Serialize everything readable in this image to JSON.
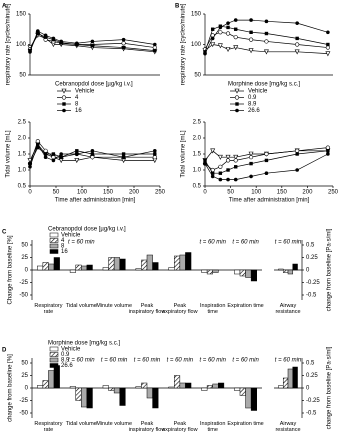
{
  "chart_data": [
    {
      "type": "line",
      "panel": "A",
      "ylabel": "respiratory rate [cycles/minute]",
      "legend_title": "Cebranopdol dose [µg/kg i.v.]",
      "x": [
        0,
        15,
        30,
        45,
        60,
        90,
        120,
        180,
        240
      ],
      "xlim": [
        0,
        250
      ],
      "ylim": [
        50,
        150
      ],
      "yticks": [
        50,
        100,
        150
      ],
      "series": [
        {
          "name": "Vehicle",
          "color": "#000000",
          "marker": "triangle-down",
          "values": [
            95,
            115,
            110,
            100,
            100,
            98,
            95,
            93,
            88
          ]
        },
        {
          "name": "4",
          "color": "#000000",
          "marker": "circle-open",
          "values": [
            92,
            120,
            108,
            105,
            102,
            100,
            100,
            102,
            95
          ]
        },
        {
          "name": "8",
          "color": "#000000",
          "marker": "square",
          "values": [
            90,
            118,
            112,
            108,
            103,
            100,
            98,
            95,
            90
          ]
        },
        {
          "name": "16",
          "color": "#000000",
          "marker": "circle",
          "values": [
            88,
            122,
            115,
            110,
            105,
            102,
            105,
            108,
            100
          ]
        }
      ]
    },
    {
      "type": "line",
      "ylabel": "Tidal volume [mL]",
      "xlabel": "Time after administration [min]",
      "x": [
        0,
        15,
        30,
        45,
        60,
        90,
        120,
        180,
        240
      ],
      "xlim": [
        0,
        250
      ],
      "xticks": [
        0,
        50,
        100,
        150,
        200,
        250
      ],
      "ylim": [
        0.5,
        2.5
      ],
      "yticks": [
        0.5,
        {
          "value": 1,
          "label": "1.0"
        },
        1.5,
        {
          "value": 2,
          "label": "2.0"
        },
        2.5
      ],
      "series": [
        {
          "color": "#000000",
          "marker": "triangle-down",
          "values": [
            1.3,
            1.8,
            1.5,
            1.4,
            1.3,
            1.3,
            1.4,
            1.3,
            1.3
          ]
        },
        {
          "color": "#000000",
          "marker": "circle-open",
          "values": [
            1.2,
            1.9,
            1.6,
            1.4,
            1.4,
            1.5,
            1.4,
            1.4,
            1.4
          ]
        },
        {
          "color": "#000000",
          "marker": "square",
          "values": [
            1.2,
            1.7,
            1.5,
            1.5,
            1.4,
            1.6,
            1.5,
            1.5,
            1.5
          ]
        },
        {
          "color": "#000000",
          "marker": "circle",
          "values": [
            1.1,
            1.8,
            1.4,
            1.3,
            1.5,
            1.5,
            1.6,
            1.4,
            1.6
          ]
        }
      ]
    },
    {
      "type": "line",
      "panel": "B",
      "ylabel": "respiratory rate [cycles/minute]",
      "legend_title": "Morphine dose [mg/kg s.c.]",
      "x": [
        0,
        15,
        30,
        45,
        60,
        90,
        120,
        180,
        240
      ],
      "xlim": [
        0,
        250
      ],
      "ylim": [
        50,
        150
      ],
      "yticks": [
        50,
        100,
        150
      ],
      "series": [
        {
          "name": "Vehicle",
          "color": "#000000",
          "marker": "triangle-down",
          "values": [
            90,
            100,
            98,
            92,
            95,
            90,
            88,
            88,
            85
          ]
        },
        {
          "name": "0.9",
          "color": "#000000",
          "marker": "circle-open",
          "values": [
            92,
            115,
            120,
            118,
            112,
            108,
            105,
            100,
            95
          ]
        },
        {
          "name": "8.9",
          "color": "#000000",
          "marker": "square",
          "values": [
            88,
            125,
            130,
            128,
            125,
            120,
            118,
            110,
            100
          ]
        },
        {
          "name": "26.6",
          "color": "#000000",
          "marker": "circle",
          "values": [
            85,
            110,
            128,
            135,
            140,
            140,
            138,
            135,
            120
          ]
        }
      ]
    },
    {
      "type": "line",
      "ylabel": "Tidal volume [mL]",
      "xlabel": "Time after administration [min]",
      "x": [
        0,
        15,
        30,
        45,
        60,
        90,
        120,
        180,
        240
      ],
      "xlim": [
        0,
        250
      ],
      "xticks": [
        0,
        50,
        100,
        150,
        200,
        250
      ],
      "ylim": [
        0.5,
        2.5
      ],
      "yticks": [
        0.5,
        {
          "value": 1,
          "label": "1.0"
        },
        1.5,
        {
          "value": 2,
          "label": "2.0"
        },
        2.5
      ],
      "series": [
        {
          "color": "#000000",
          "marker": "triangle-down",
          "values": [
            1.3,
            1.6,
            1.4,
            1.4,
            1.4,
            1.5,
            1.5,
            1.6,
            1.6
          ]
        },
        {
          "color": "#000000",
          "marker": "circle-open",
          "values": [
            1.2,
            1.0,
            1.1,
            1.3,
            1.3,
            1.4,
            1.5,
            1.6,
            1.7
          ]
        },
        {
          "color": "#000000",
          "marker": "square",
          "values": [
            1.3,
            0.9,
            0.9,
            1.0,
            1.1,
            1.2,
            1.3,
            1.5,
            1.6
          ]
        },
        {
          "color": "#000000",
          "marker": "circle",
          "values": [
            1.2,
            0.8,
            0.7,
            0.7,
            0.7,
            0.8,
            0.9,
            1.0,
            1.5
          ]
        }
      ]
    },
    {
      "type": "bar",
      "panel": "C",
      "ylabel": "Change from baseline [%]",
      "legend_title": "Cebranopdol dose [µg/kg i.v.]",
      "categories": [
        "Respiratory rate",
        "Tidal volume",
        "Minute volume",
        "Peak inspiratory flow",
        "Peak expiratory flow",
        "Inspiration time",
        "Expiration time"
      ],
      "annotations": [
        null,
        "t = 60 min",
        null,
        null,
        null,
        "t = 60 min",
        "t = 60 min"
      ],
      "ylim": [
        -60,
        60
      ],
      "yticks": [
        -50,
        -25,
        0,
        25,
        50
      ],
      "series": [
        {
          "name": "Vehicle",
          "color": "#ffffff",
          "values": [
            8,
            -5,
            5,
            3,
            5,
            -5,
            -8
          ]
        },
        {
          "name": "4",
          "color": "#ffffff",
          "hatch": true,
          "values": [
            15,
            10,
            25,
            20,
            28,
            -8,
            -12
          ]
        },
        {
          "name": "8",
          "color": "#aaaaaa",
          "values": [
            12,
            8,
            25,
            30,
            30,
            -5,
            -15
          ]
        },
        {
          "name": "16",
          "color": "#000000",
          "values": [
            25,
            10,
            22,
            15,
            35,
            0,
            -22
          ]
        }
      ]
    },
    {
      "type": "bar",
      "ylabel": "change from baseline [Pa·s/ml]",
      "yaxis_side": "right",
      "categories": [
        "Airway resistance"
      ],
      "annotations": [
        "t = 60 min"
      ],
      "ylim": [
        -0.6,
        0.6
      ],
      "yticks": [
        -0.5,
        -0.25,
        0,
        0.25,
        0.5
      ],
      "series": [
        {
          "color": "#ffffff",
          "values": [
            0.02
          ]
        },
        {
          "color": "#ffffff",
          "hatch": true,
          "values": [
            -0.05
          ]
        },
        {
          "color": "#aaaaaa",
          "values": [
            -0.08
          ]
        },
        {
          "color": "#000000",
          "values": [
            0.12
          ]
        }
      ]
    },
    {
      "type": "bar",
      "panel": "D",
      "ylabel": "change from baseline [%]",
      "legend_title": "Morphine dose [mg/kg s.c.]",
      "categories": [
        "Respiratory rate",
        "Tidal volume",
        "Minute volume",
        "Peak inspiratory flow",
        "Peak expiratory flow",
        "Inspiration time",
        "Expiration time"
      ],
      "annotations": [
        null,
        "t = 60 min",
        "t = 60 min",
        "t = 60 min",
        "t = 60 min",
        "t = 60 min",
        "t = 60 min"
      ],
      "ylim": [
        -60,
        60
      ],
      "yticks": [
        -50,
        -25,
        0,
        25,
        50
      ],
      "series": [
        {
          "name": "Vehicle",
          "color": "#ffffff",
          "values": [
            5,
            3,
            5,
            3,
            2,
            -5,
            -5
          ]
        },
        {
          "name": "0.9",
          "color": "#ffffff",
          "hatch": true,
          "values": [
            15,
            -25,
            -5,
            10,
            25,
            5,
            -15
          ]
        },
        {
          "name": "8.9",
          "color": "#aaaaaa",
          "values": [
            35,
            -38,
            -10,
            -20,
            10,
            8,
            -40
          ]
        },
        {
          "name": "26.6",
          "color": "#000000",
          "values": [
            45,
            -40,
            -35,
            -40,
            10,
            10,
            -45
          ]
        }
      ]
    },
    {
      "type": "bar",
      "ylabel": "change from baseline [Pa·s/ml]",
      "yaxis_side": "right",
      "categories": [
        "Airway resistance"
      ],
      "annotations": [
        "t = 60 min"
      ],
      "ylim": [
        -0.6,
        0.6
      ],
      "yticks": [
        -0.5,
        -0.25,
        0,
        0.25,
        0.5
      ],
      "series": [
        {
          "color": "#ffffff",
          "values": [
            0.05
          ]
        },
        {
          "color": "#ffffff",
          "hatch": true,
          "values": [
            0.2
          ]
        },
        {
          "color": "#aaaaaa",
          "values": [
            0.38
          ]
        },
        {
          "color": "#000000",
          "values": [
            0.42
          ]
        }
      ]
    }
  ]
}
